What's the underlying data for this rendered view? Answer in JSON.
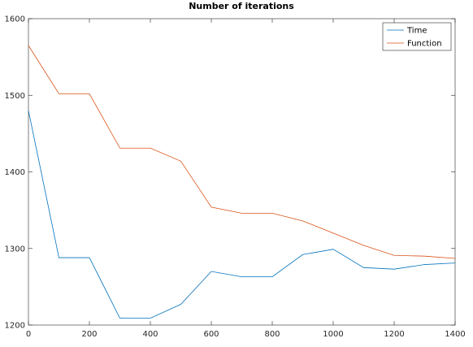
{
  "chart_data": {
    "type": "line",
    "title": "Number of iterations",
    "xlabel": "",
    "ylabel": "",
    "xlim": [
      0,
      1400
    ],
    "ylim": [
      1200,
      1600
    ],
    "x_ticks": [
      0,
      200,
      400,
      600,
      800,
      1000,
      1200,
      1400
    ],
    "y_ticks": [
      1200,
      1300,
      1400,
      1500,
      1600
    ],
    "grid": false,
    "legend_position": "top-right",
    "x": [
      0,
      100,
      200,
      300,
      400,
      500,
      600,
      700,
      800,
      900,
      1000,
      1100,
      1200,
      1300,
      1400
    ],
    "series": [
      {
        "name": "Time",
        "color": "#0072bd",
        "values": [
          1480,
          1288,
          1288,
          1209,
          1209,
          1227,
          1270,
          1263,
          1263,
          1292,
          1299,
          1275,
          1273,
          1279,
          1281
        ]
      },
      {
        "name": "Function",
        "color": "#d95319",
        "values": [
          1565,
          1502,
          1502,
          1431,
          1431,
          1414,
          1354,
          1346,
          1346,
          1336,
          1320,
          1304,
          1291,
          1290,
          1287
        ]
      }
    ]
  }
}
